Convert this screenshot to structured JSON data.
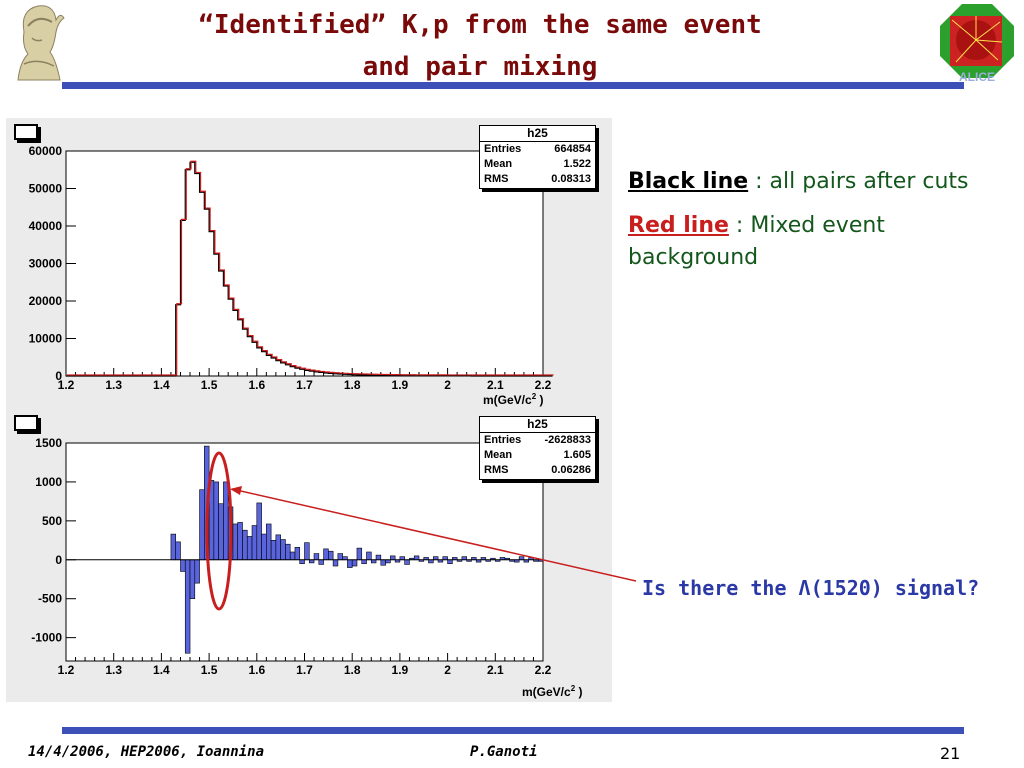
{
  "slide": {
    "title_line1": "“Identified” K,p from the same event",
    "title_line2": "and pair mixing",
    "legend_black_key": "Black line",
    "legend_black_text": " : all pairs after cuts",
    "legend_red_key": "Red line",
    "legend_red_text": " : Mixed event background",
    "question": "Is there the Λ(1520) signal?",
    "footer_left": "14/4/2006, HEP2006, Ioannina",
    "footer_center": "P.Ganoti",
    "page_number": "21",
    "logo_bottom_text": "ALICE",
    "colors": {
      "title": "#7a0a0a",
      "rule": "#3c50b8",
      "legend": "#14571c",
      "question": "#2a39a6",
      "diff_fill": "#5a64dc",
      "black_line": "#000000",
      "red_line": "#c81e1e",
      "ellipse": "#c81e1e"
    }
  },
  "chart_data": [
    {
      "type": "line",
      "title": "h25",
      "stats": {
        "entries_label": "Entries",
        "entries": "664854",
        "mean_label": "Mean",
        "mean": "1.522",
        "rms_label": "RMS",
        "rms": "0.08313"
      },
      "xlabel": "m(GeV/c",
      "xlabel_sup": "2",
      "xlabel_end": " )",
      "xlim": [
        1.2,
        2.2
      ],
      "ylim": [
        0,
        60000
      ],
      "xticks": [
        "1.2",
        "1.3",
        "1.4",
        "1.5",
        "1.6",
        "1.7",
        "1.8",
        "1.9",
        "2",
        "2.1",
        "2.2"
      ],
      "yticks": [
        "0",
        "10000",
        "20000",
        "30000",
        "40000",
        "50000",
        "60000"
      ],
      "bin_width": 0.01,
      "x_start": 1.2,
      "series": [
        {
          "color": "#000000",
          "values": [
            0,
            0,
            0,
            0,
            0,
            0,
            0,
            0,
            0,
            0,
            0,
            0,
            0,
            0,
            0,
            0,
            0,
            0,
            0,
            0,
            0,
            0,
            0,
            19000,
            41500,
            55000,
            57000,
            54000,
            49000,
            44500,
            38500,
            32500,
            28000,
            24000,
            20500,
            17500,
            15000,
            12500,
            10500,
            9000,
            7500,
            6500,
            5500,
            4800,
            4100,
            3500,
            3000,
            2500,
            2100,
            1800,
            1500,
            1300,
            1100,
            950,
            800,
            700,
            600,
            520,
            450,
            390,
            340,
            300,
            260,
            230,
            200,
            170,
            150,
            130,
            110,
            95,
            80,
            70,
            60,
            50,
            45,
            40,
            35,
            30,
            27,
            24,
            21,
            18,
            16,
            14,
            12,
            10,
            9,
            8,
            7,
            6,
            5,
            4,
            3,
            3,
            2,
            2,
            1,
            1,
            1,
            0,
            0,
            0
          ]
        },
        {
          "color": "#c81e1e",
          "values": [
            0,
            0,
            0,
            0,
            0,
            0,
            0,
            0,
            0,
            0,
            0,
            0,
            0,
            0,
            0,
            0,
            0,
            0,
            0,
            0,
            0,
            0,
            0,
            19000,
            41500,
            55000,
            57000,
            54000,
            49000,
            44500,
            38500,
            32500,
            28000,
            24000,
            20500,
            17500,
            15000,
            12500,
            10500,
            9000,
            7500,
            6500,
            5500,
            4800,
            4100,
            3500,
            3000,
            2500,
            2100,
            1800,
            1500,
            1300,
            1100,
            950,
            800,
            700,
            600,
            520,
            450,
            390,
            340,
            300,
            260,
            230,
            200,
            170,
            150,
            130,
            110,
            95,
            80,
            70,
            60,
            50,
            45,
            40,
            35,
            30,
            27,
            24,
            21,
            18,
            16,
            14,
            12,
            10,
            9,
            8,
            7,
            6,
            5,
            4,
            3,
            3,
            2,
            2,
            1,
            1,
            1,
            0,
            0,
            0
          ]
        }
      ]
    },
    {
      "type": "bar",
      "title": "h25",
      "stats": {
        "entries_label": "Entries",
        "entries": "-2628833",
        "mean_label": "Mean",
        "mean": "1.605",
        "rms_label": "RMS",
        "rms": "0.06286"
      },
      "xlabel": "m(GeV/c",
      "xlabel_sup": "2",
      "xlabel_end": " )",
      "xlim": [
        1.2,
        2.2
      ],
      "ylim": [
        -1300,
        1500
      ],
      "xticks": [
        "1.2",
        "1.3",
        "1.4",
        "1.5",
        "1.6",
        "1.7",
        "1.8",
        "1.9",
        "2",
        "2.1",
        "2.2"
      ],
      "yticks": [
        "-1000",
        "-500",
        "0",
        "500",
        "1000",
        "1500"
      ],
      "bin_width": 0.01,
      "x_start": 1.2,
      "values": [
        0,
        0,
        0,
        0,
        0,
        0,
        0,
        0,
        0,
        0,
        0,
        0,
        0,
        0,
        0,
        0,
        0,
        0,
        0,
        0,
        0,
        0,
        330,
        230,
        -150,
        -1200,
        -500,
        -300,
        900,
        1460,
        1020,
        1000,
        720,
        1000,
        680,
        460,
        480,
        380,
        300,
        440,
        730,
        330,
        460,
        250,
        320,
        260,
        200,
        100,
        160,
        -50,
        220,
        -40,
        80,
        -60,
        140,
        110,
        -80,
        80,
        40,
        -100,
        -80,
        150,
        -50,
        100,
        -40,
        60,
        -70,
        -40,
        50,
        -30,
        40,
        -60,
        20,
        50,
        -20,
        30,
        -40,
        40,
        -30,
        40,
        -50,
        30,
        -20,
        40,
        -20,
        30,
        -30,
        30,
        -20,
        20,
        -20,
        30,
        20,
        -20,
        -30,
        40,
        -30,
        30,
        -20,
        -20
      ],
      "annotation": "ellipse around 1.52 peak with arrow to question"
    }
  ]
}
